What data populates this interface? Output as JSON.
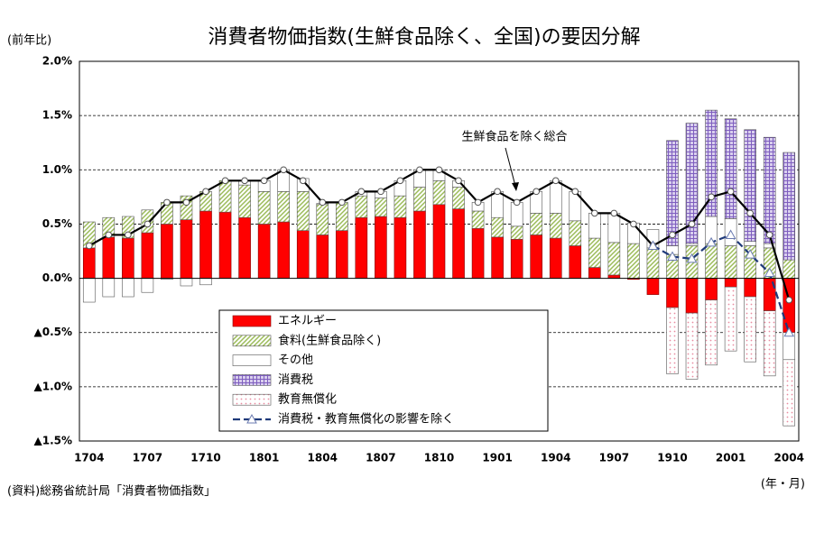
{
  "chart_data": {
    "type": "stacked-bar-line",
    "title": "消費者物価指数(生鮮食品除く、全国)の要因分解",
    "y_axis_label": "(前年比)",
    "x_axis_label": "(年・月)",
    "source": "(資料)総務省統計局「消費者物価指数」",
    "annotation": "生鮮食品を除く総合",
    "categories": [
      "1704",
      null,
      null,
      "1707",
      null,
      null,
      "1710",
      null,
      null,
      "1801",
      null,
      null,
      "1804",
      null,
      null,
      "1807",
      null,
      null,
      "1810",
      null,
      null,
      "1901",
      null,
      null,
      "1904",
      null,
      null,
      "1907",
      null,
      null,
      "1910",
      null,
      null,
      "2001",
      null,
      null,
      "2004"
    ],
    "ylim": [
      -1.5,
      2.0
    ],
    "yticks": [
      {
        "value": 2.0,
        "label": "2.0%"
      },
      {
        "value": 1.5,
        "label": "1.5%"
      },
      {
        "value": 1.0,
        "label": "1.0%"
      },
      {
        "value": 0.5,
        "label": "0.5%"
      },
      {
        "value": 0.0,
        "label": "0.0%"
      },
      {
        "value": -0.5,
        "label": "▲0.5%"
      },
      {
        "value": -1.0,
        "label": "▲1.0%"
      },
      {
        "value": -1.5,
        "label": "▲1.5%"
      }
    ],
    "grid": true,
    "series": [
      {
        "name": "エネルギー",
        "color": "#ff0000",
        "pattern": "solid",
        "values": [
          0.28,
          0.38,
          0.37,
          0.42,
          0.5,
          0.54,
          0.62,
          0.61,
          0.56,
          0.5,
          0.52,
          0.44,
          0.4,
          0.44,
          0.56,
          0.57,
          0.56,
          0.62,
          0.68,
          0.64,
          0.46,
          0.38,
          0.36,
          0.4,
          0.37,
          0.3,
          0.1,
          0.03,
          -0.01,
          -0.15,
          -0.27,
          -0.32,
          -0.2,
          -0.08,
          -0.17,
          -0.3,
          -0.5
        ]
      },
      {
        "name": "食料(生鮮食品除く)",
        "color": "#9bbb59",
        "pattern": "diagonal",
        "values": [
          0.24,
          0.18,
          0.2,
          0.21,
          0.2,
          0.22,
          0.18,
          0.29,
          0.3,
          0.3,
          0.28,
          0.36,
          0.28,
          0.26,
          0.2,
          0.17,
          0.2,
          0.22,
          0.22,
          0.2,
          0.16,
          0.18,
          0.12,
          0.2,
          0.23,
          0.23,
          0.27,
          0.3,
          0.32,
          0.28,
          0.22,
          0.3,
          0.32,
          0.3,
          0.3,
          0.28,
          0.17
        ]
      },
      {
        "name": "その他",
        "color": "#ffffff",
        "pattern": "solid",
        "values": [
          -0.22,
          -0.17,
          -0.17,
          -0.13,
          -0.01,
          -0.07,
          -0.06,
          0,
          0.04,
          0.1,
          0.2,
          0.12,
          0.01,
          0,
          0.04,
          0.06,
          0.14,
          0.16,
          0.1,
          0.06,
          0.08,
          0.24,
          0.22,
          0.2,
          0.3,
          0.27,
          0.23,
          0.27,
          0.19,
          0.17,
          0.08,
          0.02,
          0.25,
          0.25,
          0.04,
          0.04,
          -0.25
        ]
      },
      {
        "name": "消費税",
        "color": "#7f5fbf",
        "pattern": "grid",
        "values": [
          0,
          0,
          0,
          0,
          0,
          0,
          0,
          0,
          0,
          0,
          0,
          0,
          0,
          0,
          0,
          0,
          0,
          0,
          0,
          0,
          0,
          0,
          0,
          0,
          0,
          0,
          0,
          0,
          0,
          0,
          0.97,
          1.11,
          0.98,
          0.92,
          1.03,
          0.98,
          0.99
        ]
      },
      {
        "name": "教育無償化",
        "color": "#e88ca0",
        "pattern": "dots",
        "values": [
          0,
          0,
          0,
          0,
          0,
          0,
          0,
          0,
          0,
          0,
          0,
          0,
          0,
          0,
          0,
          0,
          0,
          0,
          0,
          0,
          0,
          0,
          0,
          0,
          0,
          0,
          0,
          0,
          0,
          0,
          -0.61,
          -0.61,
          -0.6,
          -0.59,
          -0.6,
          -0.6,
          -0.61
        ]
      }
    ],
    "lines": [
      {
        "name": "生鮮食品を除く総合",
        "color": "#000000",
        "marker": "circle",
        "dashed": false,
        "legend": false,
        "values": [
          0.3,
          0.4,
          0.4,
          0.5,
          0.7,
          0.7,
          0.8,
          0.9,
          0.9,
          0.9,
          1.0,
          0.9,
          0.7,
          0.7,
          0.8,
          0.8,
          0.9,
          1.0,
          1.0,
          0.9,
          0.7,
          0.8,
          0.7,
          0.8,
          0.9,
          0.8,
          0.6,
          0.6,
          0.5,
          0.3,
          0.4,
          0.5,
          0.75,
          0.8,
          0.6,
          0.4,
          -0.2
        ]
      },
      {
        "name": "消費税・教育無償化の影響を除く",
        "color": "#1f3a7a",
        "marker": "triangle",
        "dashed": true,
        "legend": true,
        "values": [
          null,
          null,
          null,
          null,
          null,
          null,
          null,
          null,
          null,
          null,
          null,
          null,
          null,
          null,
          null,
          null,
          null,
          null,
          null,
          null,
          null,
          null,
          null,
          null,
          null,
          null,
          null,
          null,
          null,
          0.3,
          0.2,
          0.18,
          0.33,
          0.4,
          0.22,
          0.05,
          -0.5
        ]
      }
    ]
  }
}
